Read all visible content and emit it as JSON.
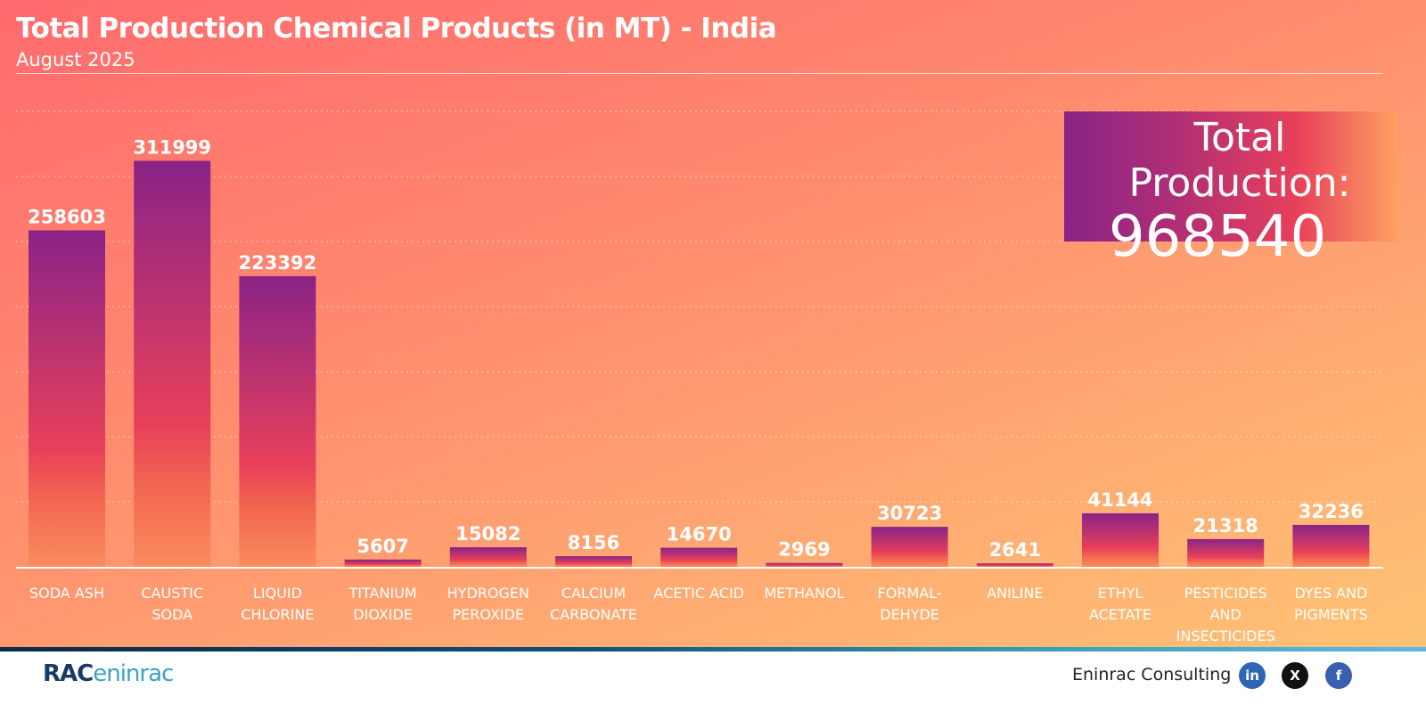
{
  "header": {
    "title": "Total Production Chemical Products (in MT) - India",
    "subtitle": "August 2025"
  },
  "total": {
    "label": "Total Production:",
    "value": "968540"
  },
  "chart_data": {
    "type": "bar",
    "title": "Total Production Chemical Products (in MT) - India",
    "subtitle": "August 2025",
    "categories": [
      [
        "SODA ASH"
      ],
      [
        "CAUSTIC",
        "SODA"
      ],
      [
        "LIQUID",
        "CHLORINE"
      ],
      [
        "TITANIUM",
        "DIOXIDE"
      ],
      [
        "HYDROGEN",
        "PEROXIDE"
      ],
      [
        "CALCIUM",
        "CARBONATE"
      ],
      [
        "ACETIC ACID"
      ],
      [
        "METHANOL"
      ],
      [
        "FORMAL-",
        "DEHYDE"
      ],
      [
        "ANILINE"
      ],
      [
        "ETHYL",
        "ACETATE"
      ],
      [
        "PESTICIDES",
        "AND",
        "INSECTICIDES"
      ],
      [
        "DYES AND",
        "PIGMENTS"
      ]
    ],
    "values": [
      258603,
      311999,
      223392,
      5607,
      15082,
      8156,
      14670,
      2969,
      30723,
      2641,
      41144,
      21318,
      32236
    ],
    "ylim": [
      0,
      350000
    ],
    "grid": true,
    "colors": {
      "bar_top": "#8a2387",
      "bar_mid": "#e8405a",
      "bar_bottom": "#f8875a"
    }
  },
  "footer": {
    "logo_text": "RAC",
    "logo_sub": "eninrac",
    "brand": "Eninrac Consulting",
    "social": [
      {
        "icon": "linkedin-icon",
        "text": "in",
        "color": "#2f66b3"
      },
      {
        "icon": "x-icon",
        "text": "X",
        "color": "#111111"
      },
      {
        "icon": "facebook-icon",
        "text": "f",
        "color": "#3a5fb0"
      }
    ]
  }
}
